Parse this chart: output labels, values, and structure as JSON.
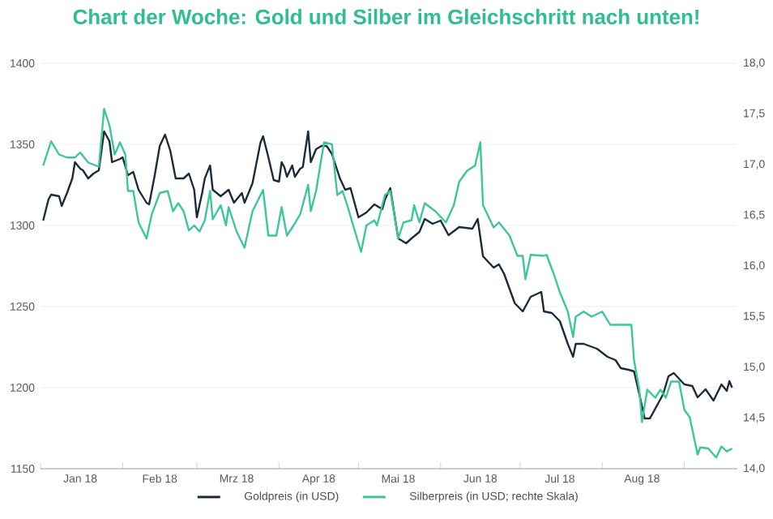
{
  "chart_data": {
    "type": "line",
    "title": "Chart der Woche: Gold und Silber im Gleichschritt nach unten!",
    "xlim": [
      "2018-01-01",
      "2018-09-21"
    ],
    "xticks": [
      {
        "value": "2018-01-01",
        "label": null
      },
      {
        "value": "2018-02-01",
        "label": null
      },
      {
        "value": "2018-03-01",
        "label": null
      },
      {
        "value": "2018-04-01",
        "label": null
      },
      {
        "value": "2018-05-01",
        "label": null
      },
      {
        "value": "2018-06-01",
        "label": null
      },
      {
        "value": "2018-07-01",
        "label": null
      },
      {
        "value": "2018-08-01",
        "label": null
      },
      {
        "value": "2018-09-01",
        "label": null
      },
      {
        "value": "2018-01-16",
        "label": "Jan 18"
      },
      {
        "value": "2018-02-15",
        "label": "Feb 18"
      },
      {
        "value": "2018-03-16",
        "label": "Mrz 18"
      },
      {
        "value": "2018-04-16",
        "label": "Apr 18"
      },
      {
        "value": "2018-05-16",
        "label": "Mai 18"
      },
      {
        "value": "2018-06-16",
        "label": "Jun 18"
      },
      {
        "value": "2018-07-16",
        "label": "Jul 18"
      },
      {
        "value": "2018-08-16",
        "label": "Aug 18"
      }
    ],
    "ylim": [
      1150,
      1400
    ],
    "yticks": [
      1150,
      1200,
      1250,
      1300,
      1350,
      1400
    ],
    "y2lim": [
      14,
      18
    ],
    "y2ticks": [
      {
        "value": 14,
        "label": "14,0"
      },
      {
        "value": 14.5,
        "label": "14,5"
      },
      {
        "value": 15,
        "label": "15,0"
      },
      {
        "value": 15.5,
        "label": "15,5"
      },
      {
        "value": 16,
        "label": "16,0"
      },
      {
        "value": 16.5,
        "label": "16,5"
      },
      {
        "value": 17,
        "label": "17,0"
      },
      {
        "value": 17.5,
        "label": "17,5"
      },
      {
        "value": 18,
        "label": "18,0"
      }
    ],
    "grid": "y",
    "legend": "bottom",
    "line_style": "solid",
    "marker": "none",
    "series": [
      {
        "name": "Goldpreis (in USD)",
        "color": "#1c2b3c",
        "x": [
          "2018-01-02",
          "2018-01-04",
          "2018-01-05",
          "2018-01-08",
          "2018-01-09",
          "2018-01-11",
          "2018-01-13",
          "2018-01-14",
          "2018-01-16",
          "2018-01-17",
          "2018-01-19",
          "2018-01-21",
          "2018-01-23",
          "2018-01-25",
          "2018-01-27",
          "2018-01-28",
          "2018-01-31",
          "2018-02-01",
          "2018-02-03",
          "2018-02-05",
          "2018-02-07",
          "2018-02-10",
          "2018-02-11",
          "2018-02-13",
          "2018-02-15",
          "2018-02-17",
          "2018-02-19",
          "2018-02-21",
          "2018-02-24",
          "2018-02-26",
          "2018-02-28",
          "2018-03-01",
          "2018-03-03",
          "2018-03-04",
          "2018-03-06",
          "2018-03-07",
          "2018-03-10",
          "2018-03-13",
          "2018-03-15",
          "2018-03-18",
          "2018-03-19",
          "2018-03-22",
          "2018-03-25",
          "2018-03-26",
          "2018-03-28",
          "2018-03-30",
          "2018-04-01",
          "2018-04-02",
          "2018-04-03",
          "2018-04-04",
          "2018-04-06",
          "2018-04-07",
          "2018-04-09",
          "2018-04-10",
          "2018-04-12",
          "2018-04-13",
          "2018-04-15",
          "2018-04-17",
          "2018-04-19",
          "2018-04-21",
          "2018-04-24",
          "2018-04-26",
          "2018-04-28",
          "2018-05-01",
          "2018-05-04",
          "2018-05-07",
          "2018-05-10",
          "2018-05-11",
          "2018-05-13",
          "2018-05-16",
          "2018-05-19",
          "2018-05-21",
          "2018-05-24",
          "2018-05-26",
          "2018-05-29",
          "2018-06-01",
          "2018-06-04",
          "2018-06-08",
          "2018-06-13",
          "2018-06-15",
          "2018-06-17",
          "2018-06-21",
          "2018-06-23",
          "2018-06-25",
          "2018-06-29",
          "2018-07-02",
          "2018-07-05",
          "2018-07-09",
          "2018-07-10",
          "2018-07-13",
          "2018-07-16",
          "2018-07-19",
          "2018-07-21",
          "2018-07-22",
          "2018-07-25",
          "2018-07-30",
          "2018-08-03",
          "2018-08-06",
          "2018-08-08",
          "2018-08-11",
          "2018-08-13",
          "2018-08-15",
          "2018-08-17",
          "2018-08-19",
          "2018-08-21",
          "2018-08-24",
          "2018-08-26",
          "2018-08-28",
          "2018-09-01",
          "2018-09-04",
          "2018-09-06",
          "2018-09-09",
          "2018-09-12",
          "2018-09-15",
          "2018-09-17",
          "2018-09-18",
          "2018-09-19"
        ],
        "values": [
          1303,
          1316,
          1319,
          1318,
          1312,
          1320,
          1329,
          1339,
          1335,
          1334,
          1329,
          1332,
          1334,
          1358,
          1352,
          1339,
          1341,
          1342,
          1331,
          1333,
          1322,
          1314,
          1313,
          1330,
          1349,
          1356,
          1346,
          1329,
          1329,
          1332,
          1322,
          1305,
          1320,
          1329,
          1337,
          1322,
          1318,
          1322,
          1314,
          1320,
          1314,
          1326,
          1351,
          1355,
          1342,
          1328,
          1327,
          1339,
          1336,
          1330,
          1337,
          1330,
          1335,
          1336,
          1358,
          1339,
          1347,
          1349,
          1349,
          1344,
          1329,
          1322,
          1323,
          1305,
          1308,
          1313,
          1310,
          1316,
          1323,
          1292,
          1289,
          1292,
          1296,
          1304,
          1301,
          1303,
          1294,
          1299,
          1298,
          1304,
          1281,
          1274,
          1276,
          1270,
          1252,
          1247,
          1256,
          1259,
          1247,
          1246,
          1241,
          1227,
          1219,
          1227,
          1227,
          1224,
          1219,
          1217,
          1212,
          1211,
          1210,
          1196,
          1181,
          1181,
          1187,
          1196,
          1207,
          1209,
          1202,
          1201,
          1194,
          1199,
          1192,
          1202,
          1198,
          1204,
          1200
        ]
      },
      {
        "name": "Silberpreis (in USD; rechte Skala)",
        "color": "#3cc896",
        "axis": "y2",
        "x": [
          "2018-01-02",
          "2018-01-04",
          "2018-01-05",
          "2018-01-08",
          "2018-01-11",
          "2018-01-14",
          "2018-01-16",
          "2018-01-19",
          "2018-01-23",
          "2018-01-25",
          "2018-01-27",
          "2018-01-29",
          "2018-01-31",
          "2018-02-02",
          "2018-02-03",
          "2018-02-05",
          "2018-02-07",
          "2018-02-10",
          "2018-02-12",
          "2018-02-15",
          "2018-02-18",
          "2018-02-20",
          "2018-02-22",
          "2018-02-24",
          "2018-02-26",
          "2018-02-28",
          "2018-03-02",
          "2018-03-04",
          "2018-03-06",
          "2018-03-07",
          "2018-03-10",
          "2018-03-12",
          "2018-03-13",
          "2018-03-16",
          "2018-03-19",
          "2018-03-22",
          "2018-03-26",
          "2018-03-28",
          "2018-03-31",
          "2018-04-02",
          "2018-04-04",
          "2018-04-07",
          "2018-04-09",
          "2018-04-12",
          "2018-04-13",
          "2018-04-15",
          "2018-04-18",
          "2018-04-21",
          "2018-04-23",
          "2018-04-25",
          "2018-04-27",
          "2018-04-29",
          "2018-05-02",
          "2018-05-04",
          "2018-05-07",
          "2018-05-08",
          "2018-05-11",
          "2018-05-13",
          "2018-05-16",
          "2018-05-18",
          "2018-05-21",
          "2018-05-22",
          "2018-05-24",
          "2018-05-26",
          "2018-05-30",
          "2018-06-03",
          "2018-06-06",
          "2018-06-08",
          "2018-06-11",
          "2018-06-14",
          "2018-06-16",
          "2018-06-17",
          "2018-06-21",
          "2018-06-23",
          "2018-06-27",
          "2018-06-30",
          "2018-07-02",
          "2018-07-03",
          "2018-07-05",
          "2018-07-10",
          "2018-07-11",
          "2018-07-14",
          "2018-07-16",
          "2018-07-19",
          "2018-07-21",
          "2018-07-22",
          "2018-07-25",
          "2018-07-28",
          "2018-08-01",
          "2018-08-04",
          "2018-08-07",
          "2018-08-10",
          "2018-08-12",
          "2018-08-13",
          "2018-08-15",
          "2018-08-16",
          "2018-08-18",
          "2018-08-21",
          "2018-08-23",
          "2018-08-25",
          "2018-08-27",
          "2018-08-30",
          "2018-09-01",
          "2018-09-03",
          "2018-09-06",
          "2018-09-07",
          "2018-09-10",
          "2018-09-13",
          "2018-09-15",
          "2018-09-17",
          "2018-09-19"
        ],
        "values": [
          16.99,
          17.15,
          17.23,
          17.1,
          17.07,
          17.07,
          17.12,
          17.02,
          16.98,
          17.55,
          17.39,
          17.1,
          17.22,
          17.1,
          16.74,
          16.74,
          16.43,
          16.27,
          16.51,
          16.72,
          16.74,
          16.54,
          16.62,
          16.54,
          16.35,
          16.4,
          16.34,
          16.45,
          16.74,
          16.46,
          16.6,
          16.4,
          16.58,
          16.34,
          16.18,
          16.54,
          16.75,
          16.3,
          16.3,
          16.58,
          16.3,
          16.42,
          16.51,
          16.8,
          16.54,
          16.74,
          17.22,
          17.2,
          16.7,
          16.74,
          16.58,
          16.4,
          16.14,
          16.4,
          16.45,
          16.4,
          16.7,
          16.74,
          16.27,
          16.43,
          16.45,
          16.6,
          16.43,
          16.62,
          16.54,
          16.43,
          16.6,
          16.83,
          16.94,
          16.99,
          17.22,
          16.6,
          16.38,
          16.43,
          16.3,
          16.1,
          16.1,
          15.87,
          16.11,
          16.1,
          16.11,
          15.9,
          15.74,
          15.55,
          15.3,
          15.5,
          15.55,
          15.5,
          15.55,
          15.42,
          15.42,
          15.42,
          15.42,
          15.07,
          14.78,
          14.46,
          14.78,
          14.7,
          14.78,
          14.7,
          14.86,
          14.86,
          14.58,
          14.51,
          14.14,
          14.21,
          14.2,
          14.11,
          14.22,
          14.17,
          14.2
        ]
      }
    ]
  }
}
